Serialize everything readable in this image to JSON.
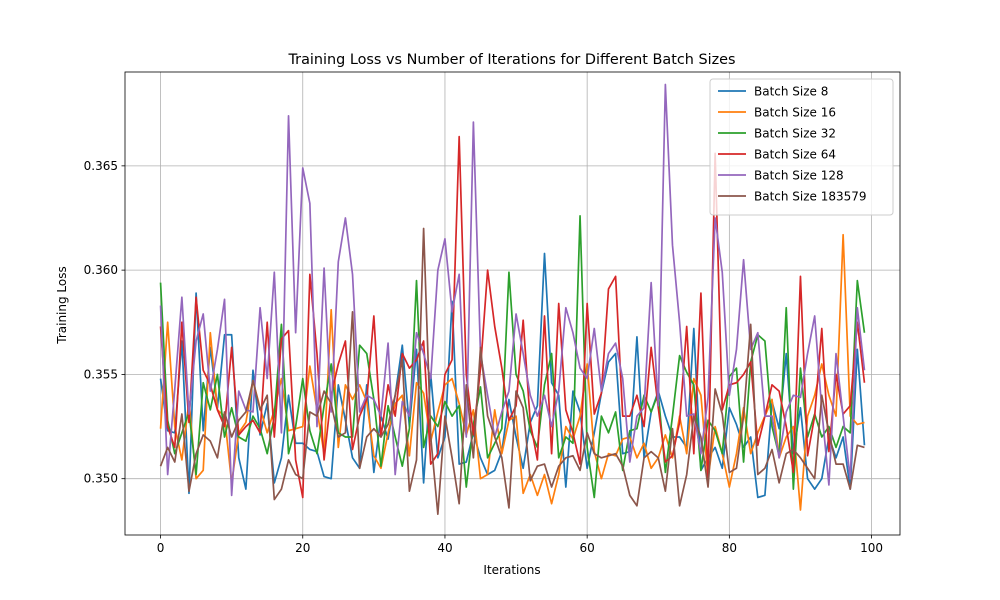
{
  "chart_data": {
    "type": "line",
    "title": "Training Loss vs Number of Iterations for Different Batch Sizes",
    "xlabel": "Iterations",
    "ylabel": "Training Loss",
    "xlim": [
      -5,
      104
    ],
    "ylim": [
      0.3473,
      0.3695
    ],
    "xticks": [
      0,
      20,
      40,
      60,
      80,
      100
    ],
    "yticks": [
      0.35,
      0.355,
      0.36,
      0.365
    ],
    "ytick_format": 3,
    "grid": true,
    "legend_position": "top-right",
    "series": [
      {
        "name": "Batch Size 8",
        "color": "#1f77b4",
        "values": [
          0.3548,
          0.3523,
          0.3522,
          0.3566,
          0.3493,
          0.3589,
          0.3523,
          0.3563,
          0.3534,
          0.3569,
          0.3569,
          0.351,
          0.3495,
          0.3552,
          0.3521,
          0.3536,
          0.3498,
          0.351,
          0.354,
          0.3517,
          0.3517,
          0.3514,
          0.3513,
          0.3501,
          0.35,
          0.3545,
          0.3528,
          0.351,
          0.3505,
          0.3545,
          0.3503,
          0.353,
          0.3519,
          0.354,
          0.3564,
          0.3525,
          0.3562,
          0.3498,
          0.355,
          0.351,
          0.352,
          0.3585,
          0.3507,
          0.3508,
          0.3522,
          0.351,
          0.3502,
          0.3504,
          0.3513,
          0.3538,
          0.352,
          0.3505,
          0.3527,
          0.3535,
          0.3608,
          0.3546,
          0.354,
          0.3496,
          0.3542,
          0.3532,
          0.3505,
          0.3522,
          0.3541,
          0.3556,
          0.356,
          0.3512,
          0.3513,
          0.3568,
          0.351,
          0.3532,
          0.3542,
          0.353,
          0.352,
          0.352,
          0.3515,
          0.3572,
          0.3504,
          0.351,
          0.3515,
          0.3505,
          0.3534,
          0.3526,
          0.3515,
          0.352,
          0.3491,
          0.3492,
          0.3537,
          0.3524,
          0.356,
          0.3512,
          0.3534,
          0.35,
          0.3495,
          0.35,
          0.352,
          0.351,
          0.352,
          0.3495,
          0.3562,
          0.3516
        ]
      },
      {
        "name": "Batch Size 16",
        "color": "#ff7f0e",
        "values": [
          0.3524,
          0.3575,
          0.3525,
          0.3509,
          0.3537,
          0.35,
          0.3504,
          0.357,
          0.3533,
          0.353,
          0.3498,
          0.3522,
          0.3527,
          0.3547,
          0.3534,
          0.3522,
          0.3533,
          0.3548,
          0.3523,
          0.3524,
          0.3525,
          0.3554,
          0.3533,
          0.3512,
          0.3581,
          0.3515,
          0.3545,
          0.3538,
          0.3545,
          0.3537,
          0.3511,
          0.3505,
          0.3522,
          0.3536,
          0.354,
          0.3511,
          0.3546,
          0.3541,
          0.3518,
          0.3532,
          0.3545,
          0.3548,
          0.3536,
          0.3521,
          0.3533,
          0.35,
          0.3502,
          0.3533,
          0.3512,
          0.3528,
          0.353,
          0.3493,
          0.3502,
          0.3492,
          0.3502,
          0.3488,
          0.3502,
          0.3525,
          0.3519,
          0.353,
          0.3555,
          0.3513,
          0.35,
          0.3512,
          0.3511,
          0.3519,
          0.352,
          0.351,
          0.3517,
          0.3505,
          0.351,
          0.3521,
          0.351,
          0.353,
          0.3512,
          0.3548,
          0.354,
          0.35,
          0.3525,
          0.3512,
          0.3496,
          0.3512,
          0.3534,
          0.3512,
          0.3522,
          0.353,
          0.3538,
          0.351,
          0.352,
          0.3525,
          0.3485,
          0.353,
          0.354,
          0.3555,
          0.354,
          0.353,
          0.3617,
          0.353,
          0.3526,
          0.3527
        ]
      },
      {
        "name": "Batch Size 32",
        "color": "#2ca02c",
        "values": [
          0.3594,
          0.3528,
          0.3512,
          0.3522,
          0.3532,
          0.3502,
          0.3546,
          0.3533,
          0.355,
          0.352,
          0.3534,
          0.352,
          0.3518,
          0.353,
          0.3524,
          0.3512,
          0.353,
          0.3574,
          0.3512,
          0.3525,
          0.3548,
          0.3523,
          0.3512,
          0.3535,
          0.3555,
          0.3522,
          0.352,
          0.352,
          0.3564,
          0.356,
          0.3538,
          0.3506,
          0.3535,
          0.352,
          0.3506,
          0.3524,
          0.3595,
          0.3515,
          0.353,
          0.3525,
          0.3537,
          0.353,
          0.3535,
          0.3496,
          0.3526,
          0.3544,
          0.351,
          0.3517,
          0.3524,
          0.3599,
          0.355,
          0.3542,
          0.3523,
          0.3515,
          0.3545,
          0.356,
          0.351,
          0.352,
          0.3517,
          0.3626,
          0.3515,
          0.3491,
          0.353,
          0.3522,
          0.3532,
          0.3504,
          0.3523,
          0.3524,
          0.354,
          0.3532,
          0.3541,
          0.3503,
          0.353,
          0.3559,
          0.3551,
          0.3545,
          0.3504,
          0.3528,
          0.3523,
          0.3512,
          0.3549,
          0.3553,
          0.3508,
          0.3556,
          0.3569,
          0.3566,
          0.3525,
          0.3511,
          0.3582,
          0.3495,
          0.3553,
          0.352,
          0.3531,
          0.352,
          0.3525,
          0.3515,
          0.3525,
          0.3522,
          0.3595,
          0.357
        ]
      },
      {
        "name": "Batch Size 64",
        "color": "#d62728",
        "values": [
          0.3573,
          0.3525,
          0.3515,
          0.3575,
          0.3527,
          0.3587,
          0.3552,
          0.3545,
          0.3533,
          0.3525,
          0.3563,
          0.3521,
          0.3525,
          0.3528,
          0.3522,
          0.3575,
          0.352,
          0.3567,
          0.3571,
          0.3509,
          0.3491,
          0.3598,
          0.356,
          0.3509,
          0.354,
          0.3555,
          0.3566,
          0.3514,
          0.353,
          0.3538,
          0.3578,
          0.352,
          0.3545,
          0.353,
          0.356,
          0.3553,
          0.3557,
          0.3566,
          0.3507,
          0.3512,
          0.355,
          0.3557,
          0.3664,
          0.355,
          0.3521,
          0.3553,
          0.36,
          0.3573,
          0.3553,
          0.3528,
          0.3535,
          0.3576,
          0.3527,
          0.3509,
          0.3578,
          0.3512,
          0.3584,
          0.3533,
          0.3522,
          0.3507,
          0.3584,
          0.3531,
          0.3541,
          0.3591,
          0.3597,
          0.353,
          0.353,
          0.354,
          0.3525,
          0.3563,
          0.3534,
          0.3508,
          0.3511,
          0.3527,
          0.3573,
          0.3512,
          0.3589,
          0.35,
          0.3656,
          0.3533,
          0.3545,
          0.3546,
          0.355,
          0.3556,
          0.3516,
          0.353,
          0.3545,
          0.3542,
          0.3525,
          0.3503,
          0.3597,
          0.3511,
          0.353,
          0.3572,
          0.3513,
          0.355,
          0.3531,
          0.3535,
          0.3575,
          0.3546
        ]
      },
      {
        "name": "Batch Size 128",
        "color": "#9467bd",
        "values": [
          0.3583,
          0.3502,
          0.3543,
          0.3587,
          0.3531,
          0.3566,
          0.3579,
          0.3542,
          0.3562,
          0.3586,
          0.3492,
          0.3542,
          0.3533,
          0.3532,
          0.3582,
          0.3548,
          0.3599,
          0.3522,
          0.3674,
          0.357,
          0.3649,
          0.3632,
          0.3525,
          0.3601,
          0.3532,
          0.3604,
          0.3625,
          0.3598,
          0.3532,
          0.354,
          0.3538,
          0.353,
          0.3565,
          0.3502,
          0.3537,
          0.353,
          0.357,
          0.356,
          0.3548,
          0.36,
          0.3615,
          0.358,
          0.3598,
          0.352,
          0.3671,
          0.356,
          0.354,
          0.352,
          0.3532,
          0.3542,
          0.3579,
          0.356,
          0.354,
          0.353,
          0.354,
          0.3525,
          0.3542,
          0.3582,
          0.357,
          0.3553,
          0.3548,
          0.3572,
          0.3542,
          0.356,
          0.3565,
          0.3548,
          0.3508,
          0.353,
          0.3534,
          0.3594,
          0.3535,
          0.3689,
          0.3612,
          0.3575,
          0.353,
          0.3531,
          0.3512,
          0.3539,
          0.3625,
          0.3599,
          0.354,
          0.3562,
          0.3605,
          0.3562,
          0.357,
          0.353,
          0.353,
          0.351,
          0.3532,
          0.354,
          0.3539,
          0.356,
          0.3578,
          0.3533,
          0.3497,
          0.356,
          0.353,
          0.35,
          0.3582,
          0.3552
        ]
      },
      {
        "name": "Batch Size 183579",
        "color": "#8c564b",
        "values": [
          0.3506,
          0.3515,
          0.3508,
          0.3531,
          0.3494,
          0.3512,
          0.3521,
          0.3518,
          0.351,
          0.3532,
          0.352,
          0.3528,
          0.3532,
          0.3547,
          0.3533,
          0.354,
          0.349,
          0.3495,
          0.3509,
          0.3502,
          0.35,
          0.3532,
          0.353,
          0.3542,
          0.3536,
          0.352,
          0.3522,
          0.358,
          0.3505,
          0.352,
          0.3524,
          0.352,
          0.3526,
          0.354,
          0.3557,
          0.3494,
          0.3509,
          0.362,
          0.352,
          0.3483,
          0.353,
          0.351,
          0.3488,
          0.3545,
          0.351,
          0.3563,
          0.353,
          0.352,
          0.351,
          0.3486,
          0.3542,
          0.3534,
          0.3499,
          0.3506,
          0.3507,
          0.3496,
          0.3506,
          0.351,
          0.3511,
          0.3504,
          0.3522,
          0.3512,
          0.351,
          0.3511,
          0.3512,
          0.3506,
          0.3492,
          0.3487,
          0.351,
          0.3513,
          0.351,
          0.3494,
          0.3524,
          0.3487,
          0.3502,
          0.353,
          0.352,
          0.3496,
          0.3543,
          0.3531,
          0.3503,
          0.3505,
          0.353,
          0.3574,
          0.3502,
          0.3505,
          0.3514,
          0.3498,
          0.3512,
          0.3514,
          0.351,
          0.3505,
          0.35,
          0.354,
          0.3522,
          0.3507,
          0.3507,
          0.3495,
          0.3516,
          0.3515
        ]
      }
    ]
  }
}
